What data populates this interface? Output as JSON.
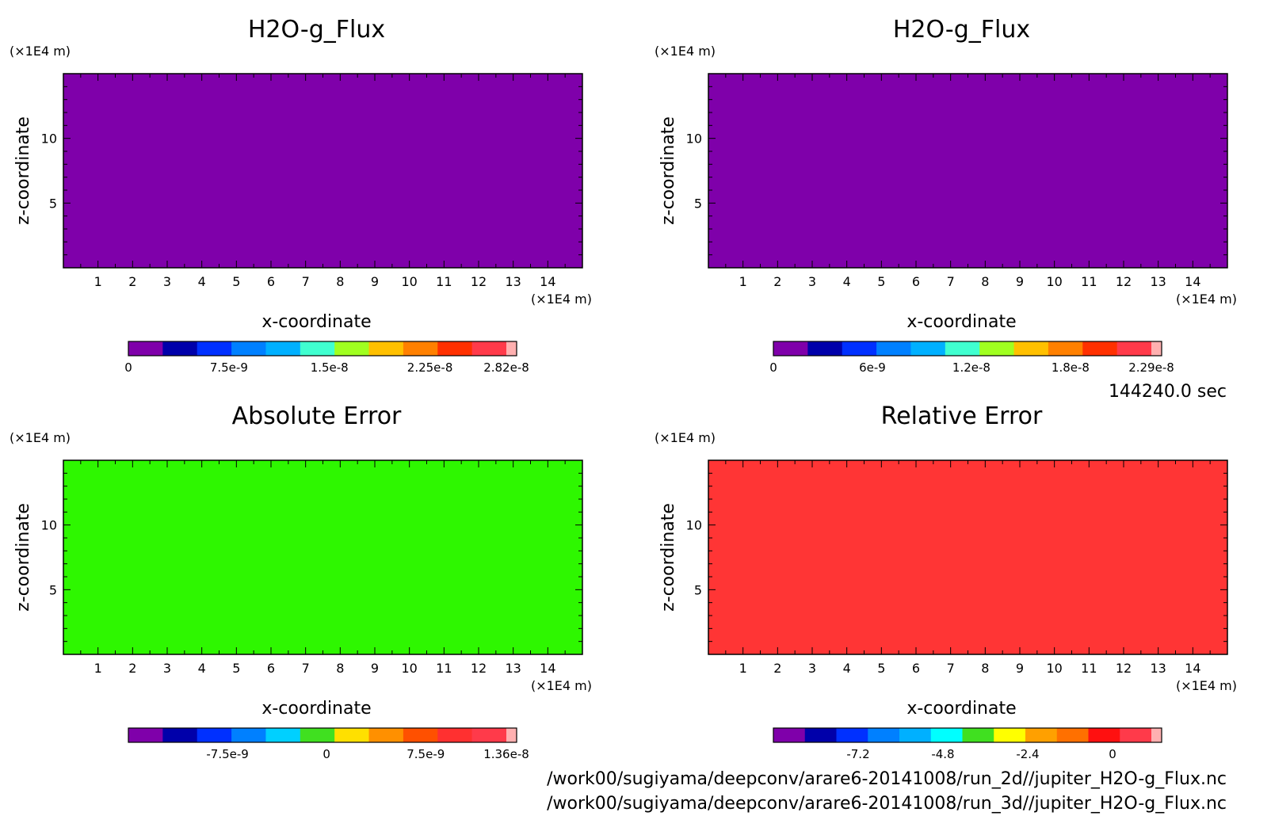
{
  "info": {
    "time": "144240.0 sec",
    "files": [
      "/work00/sugiyama/deepconv/arare6-20141008/run_2d//jupiter_H2O-g_Flux.nc",
      "/work00/sugiyama/deepconv/arare6-20141008/run_3d//jupiter_H2O-g_Flux.nc"
    ]
  },
  "colors": {
    "purple": "#7f00aa",
    "green": "#2ef700",
    "red": "#ff3535"
  },
  "chart_data": [
    {
      "type": "heatmap",
      "title": "H2O-g_Flux",
      "xlabel": "x-coordinate",
      "ylabel": "z-coordinate",
      "x_unit": "(×1E4 m)",
      "y_unit": "(×1E4 m)",
      "x_ticks": [
        "1",
        "2",
        "3",
        "4",
        "5",
        "6",
        "7",
        "8",
        "9",
        "10",
        "11",
        "12",
        "13",
        "14"
      ],
      "y_ticks": [
        "5",
        "10"
      ],
      "xlim": [
        0,
        15
      ],
      "ylim": [
        0,
        15
      ],
      "field_value": 0,
      "field_color": "#7f00aa",
      "colorbar": {
        "colors": [
          "#7f00aa",
          "#0000aa",
          "#0030ff",
          "#0080ff",
          "#00b0ff",
          "#40ffd0",
          "#a0ff20",
          "#ffc000",
          "#ff8000",
          "#ff3000",
          "#ff3a4a",
          "#ffb0b0"
        ],
        "tick_labels": [
          "0",
          "7.5e-9",
          "1.5e-8",
          "2.25e-8",
          "2.82e-8"
        ],
        "tick_values": [
          0,
          7.5e-09,
          1.5e-08,
          2.25e-08,
          2.82e-08
        ],
        "range": [
          0,
          2.82e-08
        ]
      }
    },
    {
      "type": "heatmap",
      "title": "H2O-g_Flux",
      "xlabel": "x-coordinate",
      "ylabel": "z-coordinate",
      "x_unit": "(×1E4 m)",
      "y_unit": "(×1E4 m)",
      "x_ticks": [
        "1",
        "2",
        "3",
        "4",
        "5",
        "6",
        "7",
        "8",
        "9",
        "10",
        "11",
        "12",
        "13",
        "14"
      ],
      "y_ticks": [
        "5",
        "10"
      ],
      "xlim": [
        0,
        15
      ],
      "ylim": [
        0,
        15
      ],
      "field_value": 0,
      "field_color": "#7f00aa",
      "colorbar": {
        "colors": [
          "#7f00aa",
          "#0000aa",
          "#0030ff",
          "#0080ff",
          "#00b0ff",
          "#40ffd0",
          "#a0ff20",
          "#ffc000",
          "#ff8000",
          "#ff3000",
          "#ff3a4a",
          "#ffb0b0"
        ],
        "tick_labels": [
          "0",
          "6e-9",
          "1.2e-8",
          "1.8e-8",
          "2.29e-8"
        ],
        "tick_values": [
          0,
          6e-09,
          1.2e-08,
          1.8e-08,
          2.29e-08
        ],
        "range": [
          0,
          2.29e-08
        ]
      }
    },
    {
      "type": "heatmap",
      "title": "Absolute Error",
      "xlabel": "x-coordinate",
      "ylabel": "z-coordinate",
      "x_unit": "(×1E4 m)",
      "y_unit": "(×1E4 m)",
      "x_ticks": [
        "1",
        "2",
        "3",
        "4",
        "5",
        "6",
        "7",
        "8",
        "9",
        "10",
        "11",
        "12",
        "13",
        "14"
      ],
      "y_ticks": [
        "5",
        "10"
      ],
      "xlim": [
        0,
        15
      ],
      "ylim": [
        0,
        15
      ],
      "field_value": 0,
      "field_color": "#2ef700",
      "colorbar": {
        "colors": [
          "#7f00aa",
          "#0000aa",
          "#0030ff",
          "#0080ff",
          "#00d0ff",
          "#40e020",
          "#ffe000",
          "#ff9000",
          "#ff5000",
          "#ff3030",
          "#ff3a4a",
          "#ffb0b0"
        ],
        "tick_labels": [
          "-7.5e-9",
          "0",
          "7.5e-9",
          "1.36e-8"
        ],
        "tick_values": [
          -7.5e-09,
          0,
          7.5e-09,
          1.36e-08
        ],
        "range": [
          -1.5e-08,
          1.36e-08
        ]
      }
    },
    {
      "type": "heatmap",
      "title": "Relative Error",
      "xlabel": "x-coordinate",
      "ylabel": "z-coordinate",
      "x_unit": "(×1E4 m)",
      "y_unit": "(×1E4 m)",
      "x_ticks": [
        "1",
        "2",
        "3",
        "4",
        "5",
        "6",
        "7",
        "8",
        "9",
        "10",
        "11",
        "12",
        "13",
        "14"
      ],
      "y_ticks": [
        "5",
        "10"
      ],
      "xlim": [
        0,
        15
      ],
      "ylim": [
        0,
        15
      ],
      "field_value": 0.5,
      "field_color": "#ff3535",
      "colorbar": {
        "colors": [
          "#7f00aa",
          "#0000aa",
          "#0030ff",
          "#0080ff",
          "#00b0ff",
          "#00ffff",
          "#40e020",
          "#ffff00",
          "#ffa000",
          "#ff7000",
          "#ff1010",
          "#ff3a4a",
          "#ffb0b0"
        ],
        "tick_labels": [
          "-7.2",
          "-4.8",
          "-2.4",
          "0"
        ],
        "tick_values": [
          -7.2,
          -4.8,
          -2.4,
          0
        ],
        "range": [
          -9.6,
          1.1
        ]
      }
    }
  ]
}
